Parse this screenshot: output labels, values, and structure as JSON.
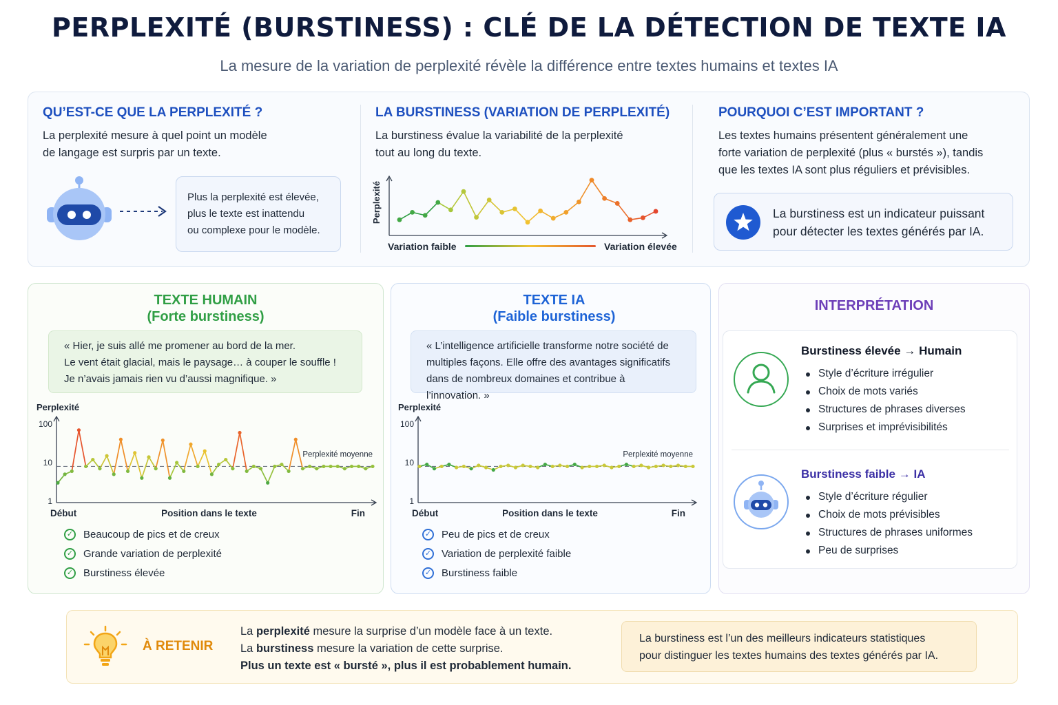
{
  "header": {
    "title": "PERPLEXITÉ (BURSTINESS) : CLÉ DE LA DÉTECTION DE TEXTE IA",
    "subtitle": "La mesure de la variation de perplexité révèle la différence entre textes humains et textes IA"
  },
  "top": {
    "what": {
      "heading": "QU’EST-CE QUE LA PERPLEXITÉ ?",
      "lines": [
        "La perplexité mesure à quel point un modèle",
        "de langage est surpris par un texte."
      ],
      "icon": "robot-icon",
      "callout": [
        "Plus la perplexité est élevée,",
        "plus le texte est inattendu",
        "ou complexe pour le modèle."
      ]
    },
    "burstiness": {
      "heading": "LA BURSTINESS (VARIATION DE PERPLEXITÉ)",
      "lines": [
        "La burstiness évalue la variabilité de la perplexité",
        "tout au long du texte."
      ],
      "ylabel": "Perplexité",
      "low_label": "Variation faible",
      "high_label": "Variation élevée"
    },
    "why": {
      "heading": "POURQUOI C’EST IMPORTANT ?",
      "lines": [
        "Les textes humains présentent généralement une",
        "forte variation de perplexité (plus « burstés »), tandis",
        "que les textes IA sont plus réguliers et prévisibles."
      ],
      "icon": "star-icon",
      "highlight": [
        "La burstiness est un indicateur puissant",
        "pour détecter les textes générés par IA."
      ]
    }
  },
  "human": {
    "title": "TEXTE HUMAIN",
    "subtitle": "(Forte burstiness)",
    "quote": [
      "« Hier, je suis allé me promener au bord de la mer.",
      "Le vent était glacial, mais le paysage… à couper le souffle !",
      "Je n’avais jamais rien vu d’aussi magnifique. »"
    ],
    "checks": [
      "Beaucoup de pics et de creux",
      "Grande variation de perplexité",
      "Burstiness élevée"
    ]
  },
  "ia": {
    "title": "TEXTE IA",
    "subtitle": "(Faible burstiness)",
    "quote": [
      "« L’intelligence artificielle transforme notre société de",
      "multiples façons. Elle offre des avantages significatifs",
      "dans de nombreux domaines et contribue à l’innovation. »"
    ],
    "checks": [
      "Peu de pics et de creux",
      "Variation de perplexité faible",
      "Burstiness faible"
    ]
  },
  "interpretation": {
    "title": "INTERPRÉTATION",
    "high": {
      "heading_a": "Burstiness élevée",
      "arrow": "→",
      "heading_b": "Humain",
      "icon": "user-icon",
      "items": [
        "Style d’écriture irrégulier",
        "Choix de mots variés",
        "Structures de phrases diverses",
        "Surprises et imprévisibilités"
      ]
    },
    "low": {
      "heading_a": "Burstiness faible",
      "arrow": "→",
      "heading_b": "IA",
      "icon": "robot-icon",
      "items": [
        "Style d’écriture régulier",
        "Choix de mots prévisibles",
        "Structures de phrases uniformes",
        "Peu de surprises"
      ]
    }
  },
  "retenir": {
    "label": "À RETENIR",
    "icon": "lightbulb-icon",
    "line1_pre": "La ",
    "line1_bold": "perplexité",
    "line1_post": " mesure la surprise d’un modèle face à un texte.",
    "line2_pre": "La ",
    "line2_bold": "burstiness",
    "line2_post": " mesure la variation de cette surprise.",
    "line3": "Plus un texte est « bursté », plus il est probablement humain.",
    "box": [
      "La burstiness est l’un des meilleurs indicateurs statistiques",
      "pour distinguer les textes humains des textes générés par IA."
    ]
  },
  "colors": {
    "blue_heading": "#1d4fbf",
    "green": "#2f9e44",
    "purple": "#6d3fb8",
    "orange": "#e08a0b"
  },
  "chart_data": [
    {
      "type": "line",
      "ylabel": "Perplexité",
      "x": [
        1,
        2,
        3,
        4,
        5,
        6,
        7,
        8,
        9,
        10,
        11,
        12,
        13,
        14,
        15,
        16,
        17,
        18,
        19,
        20,
        21
      ],
      "values": [
        1.5,
        3.0,
        2.4,
        5.0,
        3.5,
        7.2,
        2.0,
        5.5,
        3.0,
        3.7,
        1.0,
        3.3,
        1.8,
        3.0,
        5.1,
        9.5,
        5.8,
        4.8,
        1.5,
        1.9,
        3.2
      ]
    },
    {
      "type": "line",
      "title": "",
      "xlabel": "Position dans le texte",
      "ylabel": "Perplexité",
      "x_labels": [
        "Début",
        "Fin"
      ],
      "yticks": [
        1,
        10,
        100
      ],
      "y_scale": "log",
      "ref_label": "Perplexité moyenne",
      "ref_value": 8,
      "x": [
        1,
        2,
        3,
        4,
        5,
        6,
        7,
        8,
        9,
        10,
        11,
        12,
        13,
        14,
        15,
        16,
        17,
        18,
        19,
        20,
        21,
        22,
        23,
        24,
        25,
        26,
        27,
        28,
        29,
        30,
        31,
        32,
        33,
        34,
        35,
        36,
        37,
        38,
        39,
        40,
        41,
        42,
        43,
        44,
        45,
        46
      ],
      "values": [
        3,
        5,
        6,
        70,
        8,
        12,
        7,
        15,
        5,
        40,
        6,
        18,
        4,
        14,
        7,
        38,
        4,
        10,
        6,
        30,
        8,
        20,
        5,
        9,
        12,
        7,
        60,
        6,
        8,
        7,
        3,
        8,
        9,
        6,
        40,
        7,
        8,
        7,
        8,
        8,
        8,
        7,
        8,
        8,
        7,
        8
      ]
    },
    {
      "type": "line",
      "title": "",
      "xlabel": "Position dans le texte",
      "ylabel": "Perplexité",
      "x_labels": [
        "Début",
        "Fin"
      ],
      "yticks": [
        1,
        10,
        100
      ],
      "y_scale": "log",
      "ref_label": "Perplexité moyenne",
      "ref_value": 8,
      "x": [
        1,
        2,
        3,
        4,
        5,
        6,
        7,
        8,
        9,
        10,
        11,
        12,
        13,
        14,
        15,
        16,
        17,
        18,
        19,
        20,
        21,
        22,
        23,
        24,
        25,
        26,
        27,
        28,
        29,
        30,
        31,
        32,
        33,
        34,
        35,
        36,
        37,
        38
      ],
      "values": [
        8,
        9,
        7,
        8,
        9,
        7.5,
        8,
        7,
        8.5,
        7.5,
        6.5,
        8,
        8.5,
        7.5,
        8.5,
        8,
        7.5,
        9,
        8,
        8.5,
        8,
        9,
        7.5,
        8,
        8,
        8.5,
        7.5,
        8,
        9,
        8,
        8.5,
        7.5,
        8,
        8.5,
        8,
        8.5,
        8,
        8
      ]
    }
  ]
}
